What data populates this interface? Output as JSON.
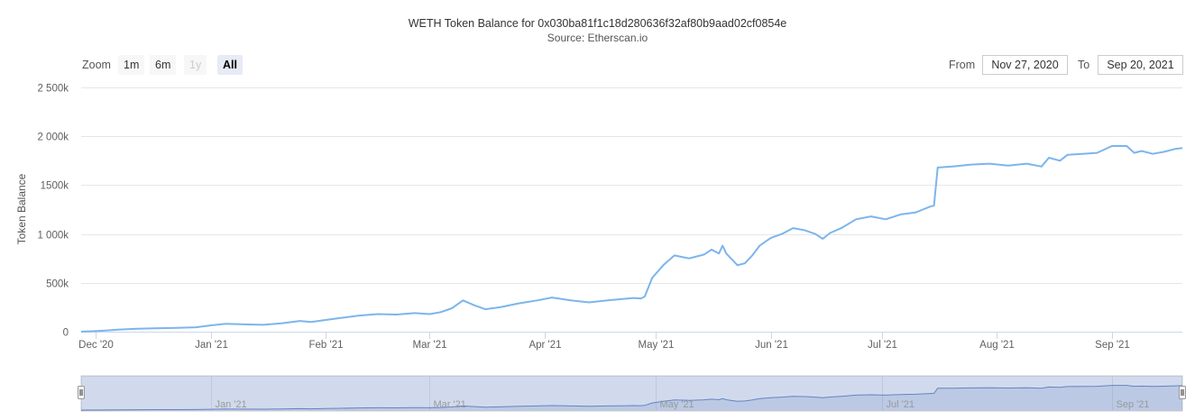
{
  "chart_data": {
    "type": "line",
    "title": "WETH Token Balance for 0x030ba81f1c18d280636f32af80b9aad02cf0854e",
    "subtitle": "Source: Etherscan.io",
    "ylabel": "Token Balance",
    "xlabel": "",
    "ylim": [
      0,
      2500000
    ],
    "xlim": [
      "2020-11-27",
      "2021-09-20"
    ],
    "y_ticks": [
      "0",
      "500k",
      "1 000k",
      "1500k",
      "2 000k",
      "2 500k"
    ],
    "y_tick_values": [
      0,
      500000,
      1000000,
      1500000,
      2000000,
      2500000
    ],
    "x_ticks": [
      "Dec '20",
      "Jan '21",
      "Feb '21",
      "Mar '21",
      "Apr '21",
      "May '21",
      "Jun '21",
      "Jul '21",
      "Aug '21",
      "Sep '21"
    ],
    "x_tick_dates": [
      "2020-12-01",
      "2021-01-01",
      "2021-02-01",
      "2021-03-01",
      "2021-04-01",
      "2021-05-01",
      "2021-06-01",
      "2021-07-01",
      "2021-08-01",
      "2021-09-01"
    ],
    "grid": true,
    "legend": "none",
    "navigator_ticks": [
      "Jan '21",
      "Mar '21",
      "May '21",
      "Jul '21",
      "Sep '21"
    ],
    "navigator_tick_dates": [
      "2021-01-01",
      "2021-03-01",
      "2021-05-01",
      "2021-07-01",
      "2021-09-01"
    ],
    "series": [
      {
        "color": "#7cb5ec",
        "x": [
          "2020-11-27",
          "2020-12-02",
          "2020-12-07",
          "2020-12-12",
          "2020-12-17",
          "2020-12-22",
          "2020-12-28",
          "2021-01-01",
          "2021-01-05",
          "2021-01-10",
          "2021-01-15",
          "2021-01-20",
          "2021-01-25",
          "2021-01-28",
          "2021-02-01",
          "2021-02-05",
          "2021-02-10",
          "2021-02-15",
          "2021-02-20",
          "2021-02-25",
          "2021-03-01",
          "2021-03-04",
          "2021-03-07",
          "2021-03-10",
          "2021-03-13",
          "2021-03-16",
          "2021-03-20",
          "2021-03-25",
          "2021-03-30",
          "2021-04-03",
          "2021-04-08",
          "2021-04-13",
          "2021-04-18",
          "2021-04-22",
          "2021-04-25",
          "2021-04-27",
          "2021-04-28",
          "2021-04-30",
          "2021-05-03",
          "2021-05-06",
          "2021-05-10",
          "2021-05-14",
          "2021-05-16",
          "2021-05-18",
          "2021-05-19",
          "2021-05-20",
          "2021-05-21",
          "2021-05-23",
          "2021-05-25",
          "2021-05-27",
          "2021-05-29",
          "2021-06-01",
          "2021-06-04",
          "2021-06-07",
          "2021-06-10",
          "2021-06-13",
          "2021-06-15",
          "2021-06-17",
          "2021-06-20",
          "2021-06-24",
          "2021-06-28",
          "2021-07-02",
          "2021-07-06",
          "2021-07-10",
          "2021-07-12",
          "2021-07-14",
          "2021-07-15",
          "2021-07-16",
          "2021-07-20",
          "2021-07-25",
          "2021-07-30",
          "2021-08-04",
          "2021-08-09",
          "2021-08-13",
          "2021-08-15",
          "2021-08-18",
          "2021-08-20",
          "2021-08-24",
          "2021-08-28",
          "2021-09-01",
          "2021-09-05",
          "2021-09-07",
          "2021-09-09",
          "2021-09-12",
          "2021-09-15",
          "2021-09-18",
          "2021-09-20"
        ],
        "y": [
          0,
          8000,
          20000,
          30000,
          35000,
          38000,
          45000,
          65000,
          80000,
          75000,
          70000,
          85000,
          110000,
          100000,
          120000,
          140000,
          165000,
          180000,
          175000,
          190000,
          180000,
          200000,
          240000,
          320000,
          270000,
          230000,
          250000,
          290000,
          320000,
          350000,
          320000,
          300000,
          320000,
          335000,
          345000,
          340000,
          360000,
          550000,
          680000,
          780000,
          750000,
          790000,
          840000,
          800000,
          880000,
          800000,
          760000,
          680000,
          700000,
          780000,
          880000,
          960000,
          1000000,
          1060000,
          1040000,
          1000000,
          950000,
          1010000,
          1060000,
          1150000,
          1180000,
          1150000,
          1200000,
          1220000,
          1250000,
          1280000,
          1290000,
          1680000,
          1690000,
          1710000,
          1720000,
          1700000,
          1720000,
          1690000,
          1780000,
          1750000,
          1810000,
          1820000,
          1830000,
          1900000,
          1900000,
          1830000,
          1850000,
          1820000,
          1840000,
          1870000,
          1880000
        ]
      }
    ]
  },
  "zoom": {
    "label": "Zoom",
    "buttons": [
      {
        "label": "1m",
        "state": "normal"
      },
      {
        "label": "6m",
        "state": "normal"
      },
      {
        "label": "1y",
        "state": "disabled"
      },
      {
        "label": "All",
        "state": "active"
      }
    ]
  },
  "range": {
    "from_label": "From",
    "from_value": "Nov 27, 2020",
    "to_label": "To",
    "to_value": "Sep 20, 2021"
  }
}
